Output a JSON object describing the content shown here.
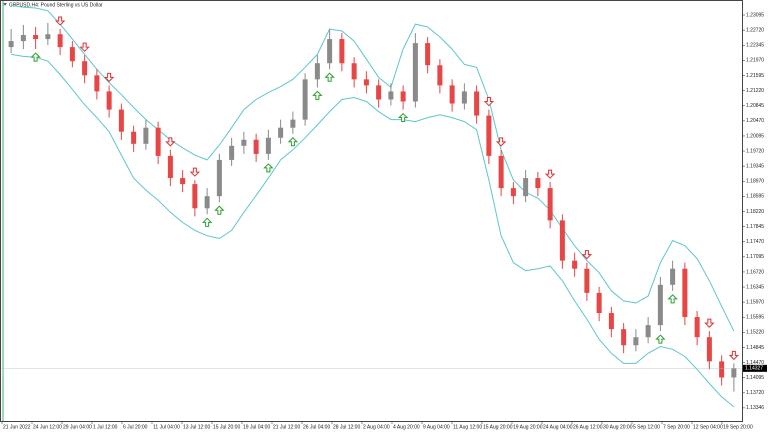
{
  "chart_data": {
    "type": "candlestick",
    "title": "GBPUSD,H4: Pound Sterling vs US Dollar",
    "x_labels": [
      "21 Jun 2022",
      "24 Jun 12:00",
      "29 Jun 04:00",
      "1 Jul 12:00",
      "6 Jul 20:00",
      "11 Jul 04:00",
      "13 Jul 12:00",
      "15 Jul 20:00",
      "19 Jul 04:00",
      "21 Jul 12:00",
      "26 Jul 04:00",
      "28 Jul 12:00",
      "2 Aug 04:00",
      "4 Aug 20:00",
      "9 Aug 04:00",
      "11 Aug 12:00",
      "15 Aug 20:00",
      "19 Aug 20:00",
      "24 Aug 04:00",
      "26 Aug 12:00",
      "30 Aug 20:00",
      "5 Sep 12:00",
      "7 Sep 20:00",
      "12 Sep 04:00",
      "19 Sep 20:00"
    ],
    "ylim": [
      1.1302,
      1.2337
    ],
    "yticks": [
      1.23095,
      {
        "value": 1.2272,
        "label": "1.22720"
      },
      1.22345,
      {
        "value": 1.2197,
        "label": "1.21970"
      },
      1.21595,
      {
        "value": 1.2122,
        "label": "1.21220"
      },
      1.20845,
      {
        "value": 1.2047,
        "label": "1.20470"
      },
      1.20095,
      {
        "value": 1.1972,
        "label": "1.19720"
      },
      1.19345,
      {
        "value": 1.1897,
        "label": "1.18970"
      },
      1.18595,
      {
        "value": 1.1822,
        "label": "1.18220"
      },
      1.17845,
      {
        "value": 1.1747,
        "label": "1.17470"
      },
      1.17095,
      {
        "value": 1.1672,
        "label": "1.16720"
      },
      1.16345,
      {
        "value": 1.1597,
        "label": "1.15970"
      },
      1.15595,
      {
        "value": 1.1522,
        "label": "1.15220"
      },
      1.14845,
      {
        "value": 1.1447,
        "label": "1.14470"
      },
      1.14095,
      {
        "value": 1.1372,
        "label": "1.13720"
      },
      1.13346
    ],
    "current_price": 1.14327,
    "bull_color": "#8a8a8a",
    "bear_color": "#e84545",
    "band_color": "#5cc6cf",
    "buy_color": "#2da02d",
    "sell_color": "#e03030",
    "ohlc": [
      [
        1.223,
        1.2275,
        1.2215,
        1.2245
      ],
      [
        1.2245,
        1.2285,
        1.2225,
        1.226
      ],
      [
        1.226,
        1.228,
        1.2225,
        1.225
      ],
      [
        1.225,
        1.229,
        1.2235,
        1.2262
      ],
      [
        1.2262,
        1.2275,
        1.221,
        1.223
      ],
      [
        1.223,
        1.2245,
        1.218,
        1.2195
      ],
      [
        1.2195,
        1.221,
        1.214,
        1.216
      ],
      [
        1.216,
        1.2175,
        1.21,
        1.212
      ],
      [
        1.212,
        1.2135,
        1.2055,
        1.2075
      ],
      [
        1.2075,
        1.209,
        1.2,
        1.202
      ],
      [
        1.202,
        1.2035,
        1.197,
        1.199
      ],
      [
        1.199,
        1.205,
        1.1975,
        1.203
      ],
      [
        1.203,
        1.2045,
        1.194,
        1.196
      ],
      [
        1.196,
        1.1975,
        1.1885,
        1.1905
      ],
      [
        1.1905,
        1.1925,
        1.187,
        1.189
      ],
      [
        1.189,
        1.19,
        1.181,
        1.183
      ],
      [
        1.183,
        1.188,
        1.1815,
        1.186
      ],
      [
        1.186,
        1.1965,
        1.1845,
        1.195
      ],
      [
        1.195,
        1.2005,
        1.1935,
        1.1985
      ],
      [
        1.1985,
        1.202,
        1.1965,
        1.2
      ],
      [
        1.2,
        1.2015,
        1.1945,
        1.1965
      ],
      [
        1.1965,
        1.2025,
        1.195,
        1.2005
      ],
      [
        1.2005,
        1.205,
        1.199,
        1.203
      ],
      [
        1.203,
        1.207,
        1.2015,
        1.205
      ],
      [
        1.205,
        1.2165,
        1.2035,
        1.215
      ],
      [
        1.215,
        1.221,
        1.213,
        1.219
      ],
      [
        1.219,
        1.2275,
        1.2175,
        1.225
      ],
      [
        1.225,
        1.2265,
        1.217,
        1.219
      ],
      [
        1.219,
        1.2205,
        1.213,
        1.215
      ],
      [
        1.215,
        1.217,
        1.2115,
        1.2135
      ],
      [
        1.2135,
        1.215,
        1.208,
        1.21
      ],
      [
        1.21,
        1.214,
        1.2085,
        1.212
      ],
      [
        1.212,
        1.2135,
        1.2075,
        1.2095
      ],
      [
        1.2095,
        1.2265,
        1.208,
        1.224
      ],
      [
        1.224,
        1.2255,
        1.2165,
        1.2185
      ],
      [
        1.2185,
        1.22,
        1.2115,
        1.2135
      ],
      [
        1.2135,
        1.215,
        1.207,
        1.209
      ],
      [
        1.209,
        1.214,
        1.2075,
        1.212
      ],
      [
        1.212,
        1.2135,
        1.204,
        1.206
      ],
      [
        1.206,
        1.2075,
        1.194,
        1.196
      ],
      [
        1.196,
        1.1975,
        1.186,
        1.188
      ],
      [
        1.188,
        1.1895,
        1.184,
        1.186
      ],
      [
        1.186,
        1.1925,
        1.1845,
        1.1905
      ],
      [
        1.1905,
        1.192,
        1.186,
        1.188
      ],
      [
        1.188,
        1.1895,
        1.178,
        1.18
      ],
      [
        1.18,
        1.1815,
        1.168,
        1.17
      ],
      [
        1.17,
        1.172,
        1.166,
        1.168
      ],
      [
        1.168,
        1.1695,
        1.16,
        1.162
      ],
      [
        1.162,
        1.1635,
        1.155,
        1.157
      ],
      [
        1.157,
        1.1585,
        1.151,
        1.153
      ],
      [
        1.153,
        1.1545,
        1.147,
        1.149
      ],
      [
        1.149,
        1.153,
        1.1475,
        1.151
      ],
      [
        1.151,
        1.156,
        1.1495,
        1.154
      ],
      [
        1.154,
        1.166,
        1.1525,
        1.164
      ],
      [
        1.164,
        1.17,
        1.1625,
        1.168
      ],
      [
        1.168,
        1.1695,
        1.154,
        1.156
      ],
      [
        1.156,
        1.1575,
        1.149,
        1.151
      ],
      [
        1.151,
        1.1525,
        1.143,
        1.145
      ],
      [
        1.145,
        1.1465,
        1.139,
        1.141
      ],
      [
        1.141,
        1.1445,
        1.1375,
        1.1433
      ]
    ],
    "upper_band": [
      1.2334,
      1.2329,
      1.2327,
      1.232,
      1.2287,
      1.225,
      1.2212,
      1.2175,
      1.2142,
      1.2112,
      1.208,
      1.205,
      1.2025,
      1.2,
      1.198,
      1.1962,
      1.195,
      1.1987,
      1.203,
      1.2075,
      1.21,
      1.2117,
      1.2132,
      1.215,
      1.218,
      1.2212,
      1.2275,
      1.227,
      1.2245,
      1.22,
      1.2155,
      1.213,
      1.2225,
      1.2287,
      1.228,
      1.2255,
      1.2225,
      1.2187,
      1.218,
      1.21,
      1.1975,
      1.19,
      1.187,
      1.1855,
      1.1825,
      1.178,
      1.1737,
      1.17,
      1.167,
      1.1625,
      1.16,
      1.1595,
      1.1612,
      1.1695,
      1.175,
      1.1737,
      1.1705,
      1.165,
      1.1587,
      1.1525
    ],
    "lower_band": [
      1.2212,
      1.2207,
      1.2205,
      1.2195,
      1.2162,
      1.2125,
      1.2087,
      1.2055,
      1.202,
      1.1962,
      1.1905,
      1.1875,
      1.185,
      1.182,
      1.1795,
      1.1775,
      1.1762,
      1.1755,
      1.1775,
      1.182,
      1.1862,
      1.1905,
      1.195,
      1.1975,
      1.2005,
      1.2037,
      1.207,
      1.21,
      1.2105,
      1.2095,
      1.207,
      1.205,
      1.205,
      1.2045,
      1.2055,
      1.2062,
      1.2055,
      1.2045,
      1.2025,
      1.19,
      1.1762,
      1.1695,
      1.1675,
      1.168,
      1.1687,
      1.165,
      1.16,
      1.1555,
      1.1505,
      1.147,
      1.1445,
      1.1445,
      1.147,
      1.1487,
      1.148,
      1.1462,
      1.143,
      1.1395,
      1.1362,
      1.1337
    ],
    "buy_signals": [
      2,
      16,
      17,
      21,
      23,
      25,
      26,
      32,
      53,
      54
    ],
    "sell_signals": [
      4,
      6,
      8,
      13,
      15,
      39,
      40,
      44,
      47,
      57,
      59
    ]
  }
}
